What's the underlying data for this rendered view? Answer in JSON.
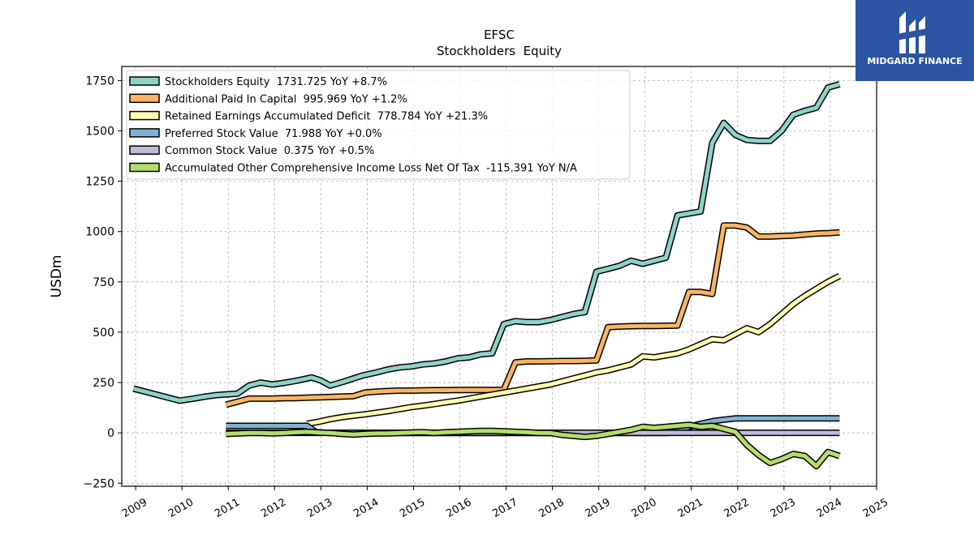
{
  "chart_data": {
    "type": "line",
    "title": "EFSC",
    "subtitle": "Stockholders  Equity",
    "ylabel": "USDm",
    "xlabel": "",
    "xlim": [
      2008.7,
      2025.0
    ],
    "ylim": [
      -265,
      1820
    ],
    "yticks": [
      -250,
      0,
      250,
      500,
      750,
      1000,
      1250,
      1500,
      1750
    ],
    "ytick_labels": [
      "−250",
      "0",
      "250",
      "500",
      "750",
      "1000",
      "1250",
      "1500",
      "1750"
    ],
    "xticks": [
      2009,
      2010,
      2011,
      2012,
      2013,
      2014,
      2015,
      2016,
      2017,
      2018,
      2019,
      2020,
      2021,
      2022,
      2023,
      2024,
      2025
    ],
    "xtick_labels": [
      "2009",
      "2010",
      "2011",
      "2012",
      "2013",
      "2014",
      "2015",
      "2016",
      "2017",
      "2018",
      "2019",
      "2020",
      "2021",
      "2022",
      "2023",
      "2024",
      "2025"
    ],
    "grid": true,
    "legend_position": "top-left",
    "series": [
      {
        "name": "Stockholders Equity  1731.725 YoY +8.7%",
        "color": "#8dd3c7",
        "x": [
          2008.95,
          2009.95,
          2010.25,
          2010.5,
          2010.75,
          2011.2,
          2011.45,
          2011.7,
          2011.95,
          2012.2,
          2012.45,
          2012.7,
          2012.8,
          2013.0,
          2013.2,
          2013.5,
          2013.7,
          2013.9,
          2014.2,
          2014.45,
          2014.7,
          2014.95,
          2015.2,
          2015.45,
          2015.7,
          2015.95,
          2016.2,
          2016.45,
          2016.7,
          2016.95,
          2017.2,
          2017.45,
          2017.7,
          2017.95,
          2018.2,
          2018.45,
          2018.7,
          2018.95,
          2019.2,
          2019.45,
          2019.7,
          2019.95,
          2020.2,
          2020.45,
          2020.7,
          2020.95,
          2021.2,
          2021.45,
          2021.7,
          2021.95,
          2022.2,
          2022.45,
          2022.7,
          2022.95,
          2023.2,
          2023.45,
          2023.7,
          2023.95,
          2024.2
        ],
        "values": [
          220,
          160,
          170,
          180,
          188,
          195,
          235,
          250,
          240,
          248,
          258,
          270,
          275,
          260,
          235,
          255,
          270,
          285,
          300,
          315,
          325,
          330,
          340,
          345,
          355,
          370,
          375,
          390,
          395,
          540,
          555,
          550,
          550,
          560,
          575,
          590,
          600,
          800,
          815,
          830,
          855,
          840,
          855,
          870,
          1080,
          1090,
          1100,
          1440,
          1540,
          1480,
          1455,
          1450,
          1450,
          1500,
          1580,
          1600,
          1615,
          1715,
          1732
        ]
      },
      {
        "name": "Additional Paid In Capital  995.969 YoY +1.2%",
        "color": "#fdb462",
        "x": [
          2010.95,
          2011.2,
          2011.45,
          2011.7,
          2011.95,
          2012.2,
          2012.45,
          2012.7,
          2012.95,
          2013.2,
          2013.45,
          2013.7,
          2013.95,
          2014.2,
          2014.45,
          2014.7,
          2014.95,
          2015.2,
          2015.45,
          2015.7,
          2015.95,
          2016.2,
          2016.45,
          2016.7,
          2016.95,
          2017.2,
          2017.45,
          2017.7,
          2017.95,
          2018.2,
          2018.45,
          2018.7,
          2018.95,
          2019.2,
          2019.45,
          2019.7,
          2019.95,
          2020.2,
          2020.45,
          2020.7,
          2020.95,
          2021.2,
          2021.45,
          2021.7,
          2021.95,
          2022.2,
          2022.45,
          2022.7,
          2022.95,
          2023.2,
          2023.45,
          2023.7,
          2023.95,
          2024.2
        ],
        "values": [
          140,
          155,
          170,
          170,
          170,
          172,
          173,
          175,
          176,
          178,
          180,
          182,
          200,
          205,
          208,
          210,
          210,
          211,
          212,
          212,
          213,
          213,
          213,
          213,
          214,
          350,
          355,
          355,
          356,
          357,
          357,
          358,
          360,
          525,
          528,
          530,
          531,
          531,
          532,
          533,
          700,
          700,
          690,
          1030,
          1030,
          1020,
          975,
          975,
          978,
          980,
          985,
          990,
          992,
          996
        ]
      },
      {
        "name": "Retained Earnings Accumulated Deficit  778.784 YoY +21.3%",
        "color": "#ffffb3",
        "x": [
          2012.7,
          2012.95,
          2013.2,
          2013.45,
          2013.7,
          2013.95,
          2014.2,
          2014.45,
          2014.7,
          2014.95,
          2015.2,
          2015.45,
          2015.7,
          2015.95,
          2016.2,
          2016.45,
          2016.7,
          2016.95,
          2017.2,
          2017.45,
          2017.7,
          2017.95,
          2018.2,
          2018.45,
          2018.7,
          2018.95,
          2019.2,
          2019.45,
          2019.7,
          2019.95,
          2020.2,
          2020.45,
          2020.7,
          2020.95,
          2021.2,
          2021.45,
          2021.7,
          2021.95,
          2022.2,
          2022.45,
          2022.7,
          2022.95,
          2023.2,
          2023.45,
          2023.7,
          2023.95,
          2024.2
        ],
        "values": [
          45,
          55,
          68,
          78,
          85,
          92,
          100,
          108,
          118,
          128,
          135,
          143,
          152,
          160,
          170,
          180,
          190,
          200,
          210,
          220,
          230,
          240,
          255,
          270,
          285,
          300,
          310,
          325,
          340,
          380,
          375,
          385,
          395,
          415,
          440,
          465,
          460,
          490,
          520,
          500,
          540,
          590,
          640,
          680,
          715,
          750,
          779
        ]
      },
      {
        "name": "Preferred Stock Value  71.988 YoY +0.0%",
        "color": "#80b1d3",
        "x": [
          2010.95,
          2011.5,
          2012.0,
          2012.5,
          2012.7,
          2012.9,
          2013.2,
          2014.0,
          2015.0,
          2016.0,
          2017.0,
          2018.0,
          2019.0,
          2020.0,
          2020.5,
          2020.95,
          2021.2,
          2021.5,
          2021.95,
          2022.45,
          2023.0,
          2023.5,
          2024.0,
          2024.2
        ],
        "values": [
          35,
          35,
          35,
          35,
          35,
          3,
          0,
          0,
          0,
          0,
          0,
          0,
          0,
          0,
          0,
          30,
          45,
          60,
          72,
          72,
          72,
          72,
          72,
          72
        ]
      },
      {
        "name": "Common Stock Value  0.375 YoY +0.5%",
        "color": "#bebada",
        "x": [
          2010.95,
          2012.0,
          2013.0,
          2014.0,
          2015.0,
          2016.0,
          2017.0,
          2018.0,
          2019.0,
          2020.0,
          2021.0,
          2022.0,
          2023.0,
          2024.2
        ],
        "values": [
          0.2,
          0.2,
          0.2,
          0.2,
          0.2,
          0.2,
          0.2,
          0.2,
          0.3,
          0.3,
          0.3,
          0.37,
          0.37,
          0.375
        ]
      },
      {
        "name": "Accumulated Other Comprehensive Income Loss Net Of Tax  -115.391 YoY N/A",
        "color": "#b3de69",
        "x": [
          2010.95,
          2011.2,
          2011.45,
          2011.7,
          2011.95,
          2012.2,
          2012.45,
          2012.7,
          2012.95,
          2013.2,
          2013.45,
          2013.7,
          2013.95,
          2014.2,
          2014.45,
          2014.7,
          2014.95,
          2015.2,
          2015.45,
          2015.7,
          2015.95,
          2016.2,
          2016.45,
          2016.7,
          2016.95,
          2017.2,
          2017.45,
          2017.7,
          2017.95,
          2018.2,
          2018.45,
          2018.7,
          2018.95,
          2019.2,
          2019.45,
          2019.7,
          2019.95,
          2020.2,
          2020.45,
          2020.7,
          2020.95,
          2021.2,
          2021.45,
          2021.7,
          2021.95,
          2022.2,
          2022.45,
          2022.7,
          2022.95,
          2023.2,
          2023.45,
          2023.7,
          2023.95,
          2024.2
        ],
        "values": [
          -5,
          -3,
          0,
          0,
          -2,
          0,
          3,
          5,
          2,
          0,
          -5,
          -8,
          -5,
          -3,
          -3,
          0,
          2,
          3,
          0,
          3,
          5,
          8,
          10,
          10,
          8,
          5,
          3,
          0,
          0,
          -10,
          -15,
          -20,
          -15,
          -5,
          5,
          15,
          30,
          25,
          30,
          35,
          40,
          30,
          35,
          20,
          5,
          -60,
          -110,
          -150,
          -130,
          -105,
          -115,
          -165,
          -95,
          -115
        ]
      }
    ]
  },
  "branding": {
    "name": "MIDGARD FINANCE",
    "bg_color": "#2b55a3"
  }
}
